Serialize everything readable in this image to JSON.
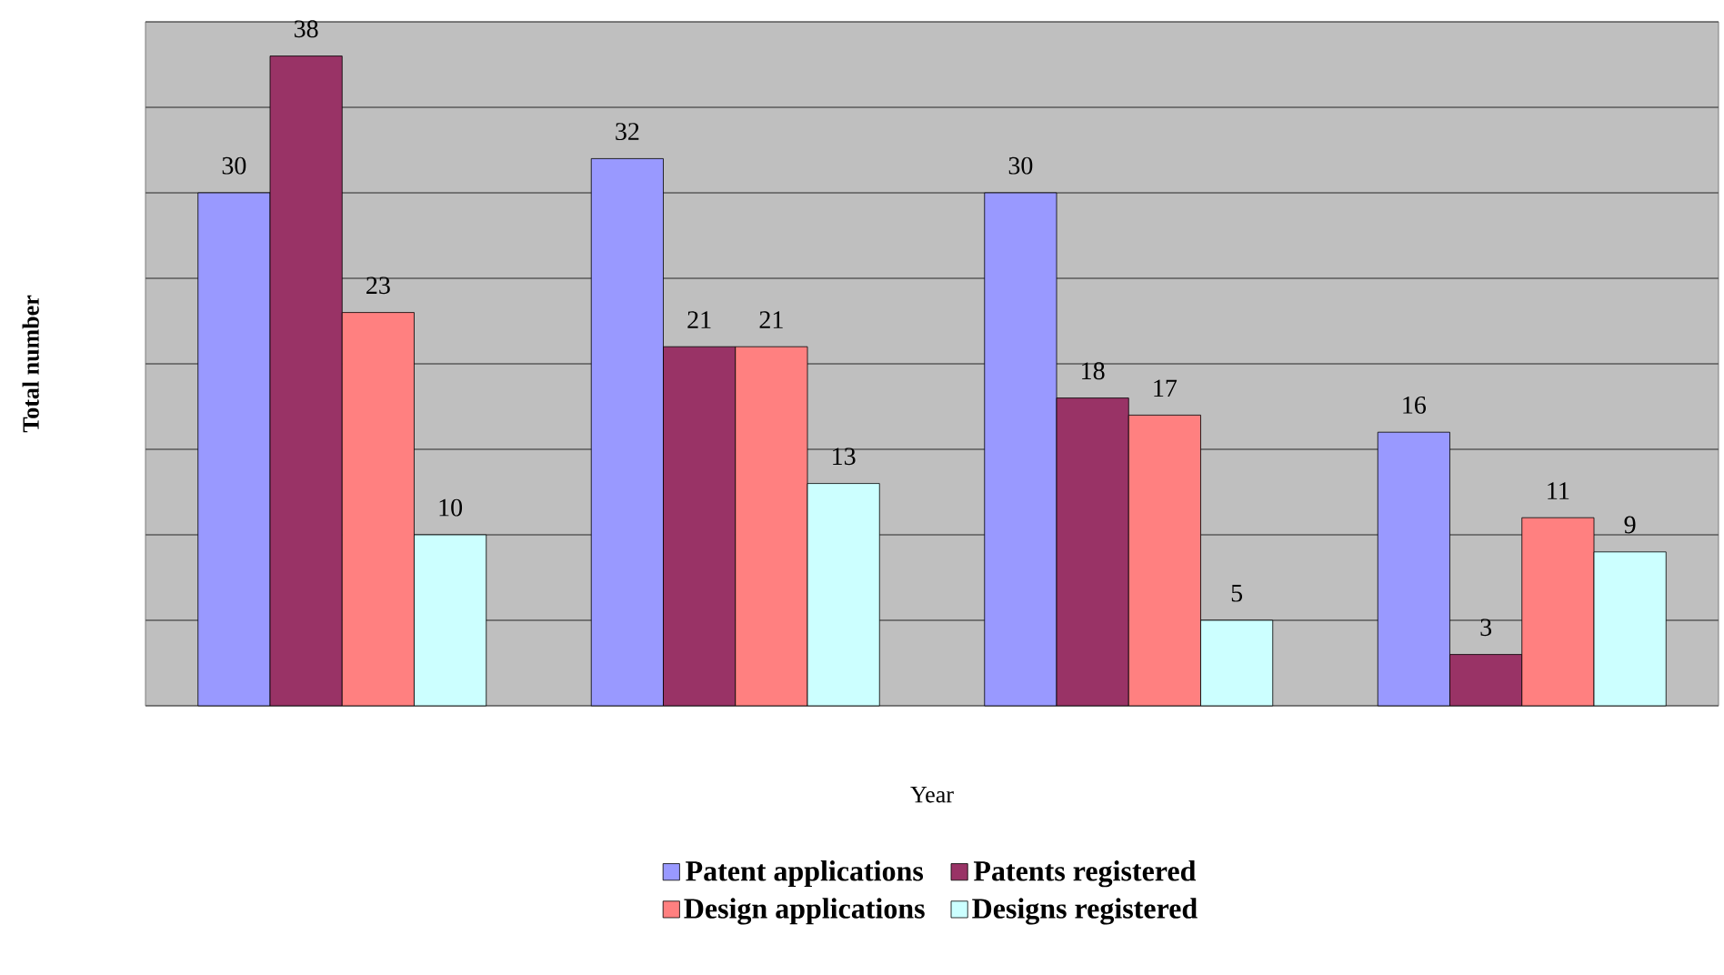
{
  "chart_data": {
    "type": "bar",
    "xlabel": "Year",
    "ylabel": "Total number",
    "categories": [
      null,
      null,
      null,
      null
    ],
    "series": [
      {
        "name": "Patent applications",
        "color": "#9999ff",
        "values": [
          30,
          32,
          30,
          16
        ]
      },
      {
        "name": "Patents registered",
        "color": "#993366",
        "values": [
          38,
          21,
          18,
          3
        ]
      },
      {
        "name": "Design applications",
        "color": "#ff8080",
        "values": [
          23,
          21,
          17,
          11
        ]
      },
      {
        "name": "Designs registered",
        "color": "#ccffff",
        "values": [
          10,
          13,
          5,
          9
        ]
      }
    ],
    "ylim": [
      0,
      40
    ],
    "yticks": [
      {
        "value": 0,
        "label": null
      },
      {
        "value": 5,
        "label": null
      },
      {
        "value": 10,
        "label": null
      },
      {
        "value": 15,
        "label": null
      },
      {
        "value": 20,
        "label": null
      },
      {
        "value": 25,
        "label": null
      },
      {
        "value": 30,
        "label": null
      },
      {
        "value": 35,
        "label": null
      },
      {
        "value": 40,
        "label": null
      }
    ],
    "grid": "y",
    "legend": "bottom",
    "data_labels": true
  }
}
